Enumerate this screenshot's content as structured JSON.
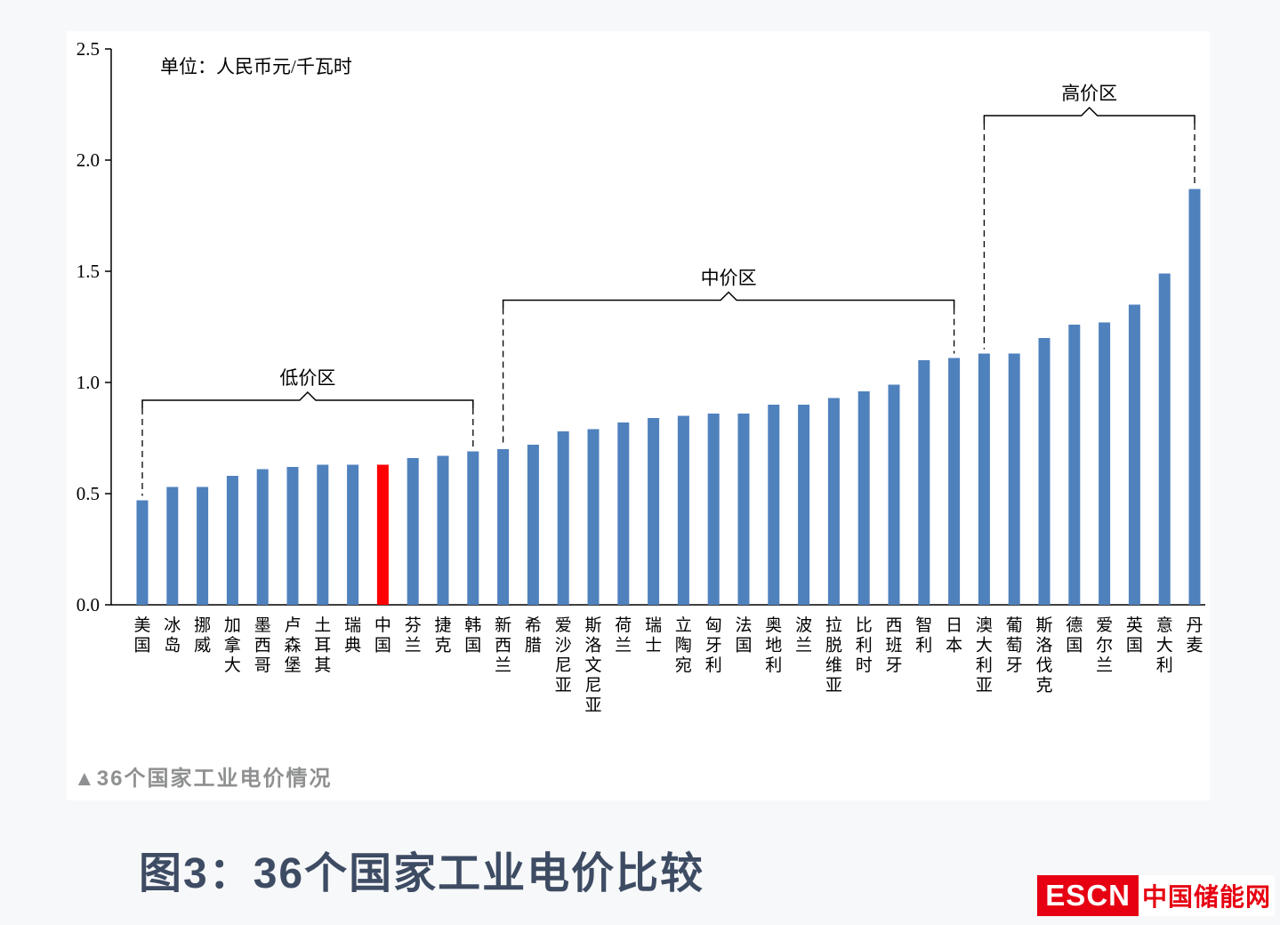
{
  "caption": "▲36个国家工业电价情况",
  "figure_title": "图3：36个国家工业电价比较",
  "logo": {
    "abbr": "ESCN",
    "name": "中国储能网"
  },
  "chart_data": {
    "type": "bar",
    "unit_label": "单位：人民币元/千瓦时",
    "xlabel": "",
    "ylabel": "",
    "ylim": [
      0,
      2.5
    ],
    "yticks": [
      "0.0",
      "0.5",
      "1.0",
      "1.5",
      "2.0",
      "2.5"
    ],
    "grid": false,
    "legend": "none",
    "bar_color": "#4f81bd",
    "highlight_color": "#ff0000",
    "highlight_index": 8,
    "categories": [
      "美国",
      "冰岛",
      "挪威",
      "加拿大",
      "墨西哥",
      "卢森堡",
      "土耳其",
      "瑞典",
      "中国",
      "芬兰",
      "捷克",
      "韩国",
      "新西兰",
      "希腊",
      "爱沙尼亚",
      "斯洛文尼亚",
      "荷兰",
      "瑞士",
      "立陶宛",
      "匈牙利",
      "法国",
      "奥地利",
      "波兰",
      "拉脱维亚",
      "比利时",
      "西班牙",
      "智利",
      "日本",
      "澳大利亚",
      "葡萄牙",
      "斯洛伐克",
      "德国",
      "爱尔兰",
      "英国",
      "意大利",
      "丹麦"
    ],
    "values": [
      0.47,
      0.53,
      0.53,
      0.58,
      0.61,
      0.62,
      0.63,
      0.63,
      0.63,
      0.66,
      0.67,
      0.69,
      0.7,
      0.72,
      0.78,
      0.79,
      0.82,
      0.84,
      0.85,
      0.86,
      0.86,
      0.9,
      0.9,
      0.93,
      0.96,
      0.99,
      1.1,
      1.11,
      1.13,
      1.13,
      1.2,
      1.26,
      1.27,
      1.35,
      1.49,
      1.87
    ],
    "zones": [
      {
        "label": "低价区",
        "start_index": 0,
        "end_index": 11,
        "bracket_level": 0.92
      },
      {
        "label": "中价区",
        "start_index": 12,
        "end_index": 27,
        "bracket_level": 1.37
      },
      {
        "label": "高价区",
        "start_index": 28,
        "end_index": 35,
        "bracket_level": 2.2
      }
    ]
  }
}
